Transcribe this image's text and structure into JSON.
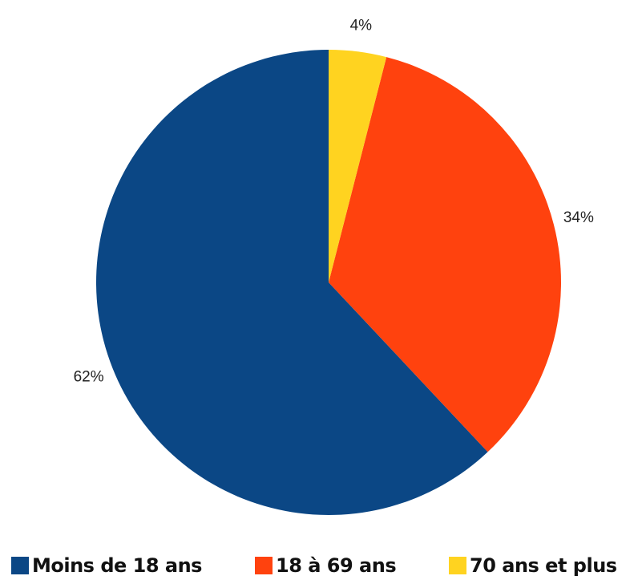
{
  "chart_data": {
    "type": "pie",
    "categories": [
      "Moins de 18 ans",
      "18 à 69 ans",
      "70 ans et plus"
    ],
    "values": [
      62,
      34,
      4
    ],
    "value_labels": [
      "62%",
      "34%",
      "4%"
    ],
    "colors": [
      "#0b4785",
      "#ff420e",
      "#ffd320"
    ],
    "legend": "bottom"
  }
}
